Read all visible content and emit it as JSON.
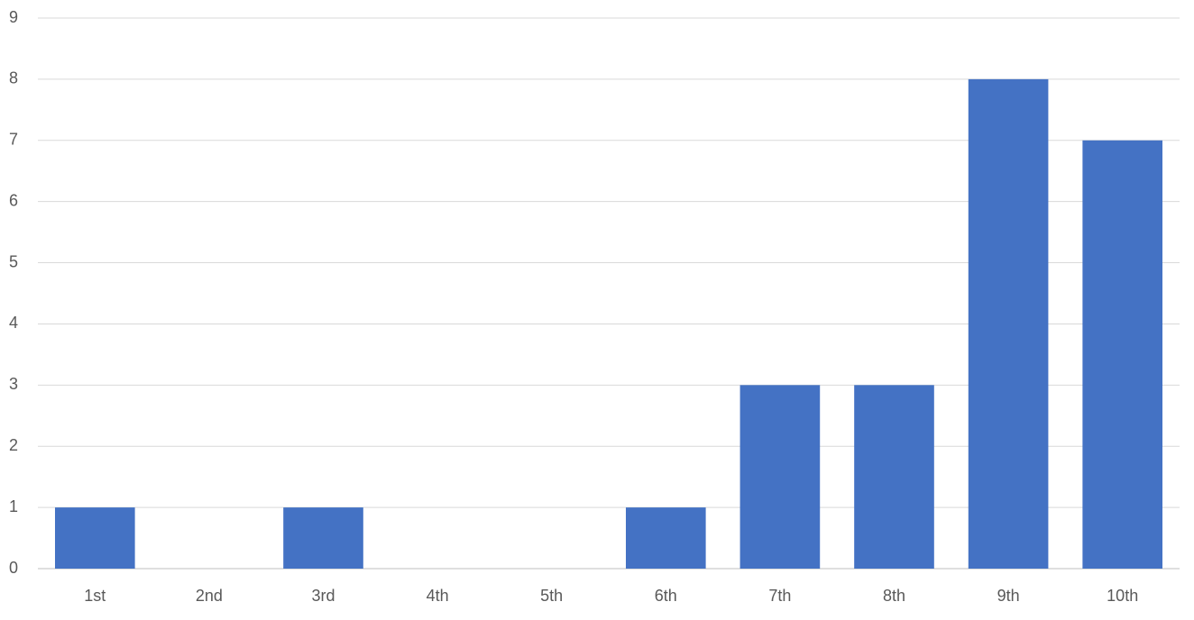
{
  "chart_data": {
    "type": "bar",
    "categories": [
      "1st",
      "2nd",
      "3rd",
      "4th",
      "5th",
      "6th",
      "7th",
      "8th",
      "9th",
      "10th"
    ],
    "values": [
      1,
      0,
      1,
      0,
      0,
      1,
      3,
      3,
      8,
      7
    ],
    "color": "#4472c4",
    "ylim": [
      0,
      9
    ],
    "yticks": [
      0,
      1,
      2,
      3,
      4,
      5,
      6,
      7,
      8,
      9
    ],
    "grid": true
  }
}
